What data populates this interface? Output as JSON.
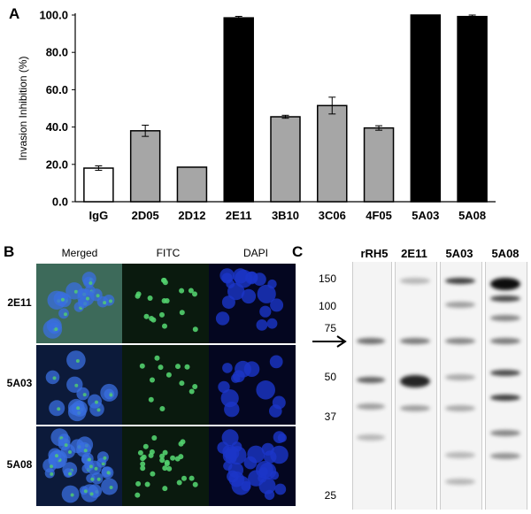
{
  "panels": {
    "a_label": "A",
    "b_label": "B",
    "c_label": "C"
  },
  "chart_data": {
    "type": "bar",
    "categories": [
      "IgG",
      "2D05",
      "2D12",
      "2E11",
      "3B10",
      "3C06",
      "4F05",
      "5A03",
      "5A08"
    ],
    "values": [
      18.0,
      38.0,
      18.5,
      98.5,
      45.5,
      51.5,
      39.5,
      100.0,
      99.2
    ],
    "errors": [
      1.2,
      3.0,
      0.0,
      0.8,
      0.8,
      4.5,
      1.2,
      0.0,
      0.8
    ],
    "fills": [
      "#ffffff",
      "#a6a6a6",
      "#a6a6a6",
      "#000000",
      "#a6a6a6",
      "#a6a6a6",
      "#a6a6a6",
      "#000000",
      "#000000"
    ],
    "ylabel": "Invasion Inhibition (%)",
    "xlabel": "",
    "ylim": [
      0,
      100
    ],
    "yticks": [
      "0.0",
      "20.0",
      "40.0",
      "60.0",
      "80.0",
      "100.0"
    ],
    "grid": false
  },
  "microscopy": {
    "columns": [
      "Merged",
      "FITC",
      "DAPI"
    ],
    "rows": [
      "2E11",
      "5A03",
      "5A08"
    ]
  },
  "blot": {
    "lanes": [
      "rRH5",
      "2E11",
      "5A03",
      "5A08"
    ],
    "markers": [
      "150",
      "100",
      "75",
      "50",
      "37",
      "25"
    ]
  }
}
